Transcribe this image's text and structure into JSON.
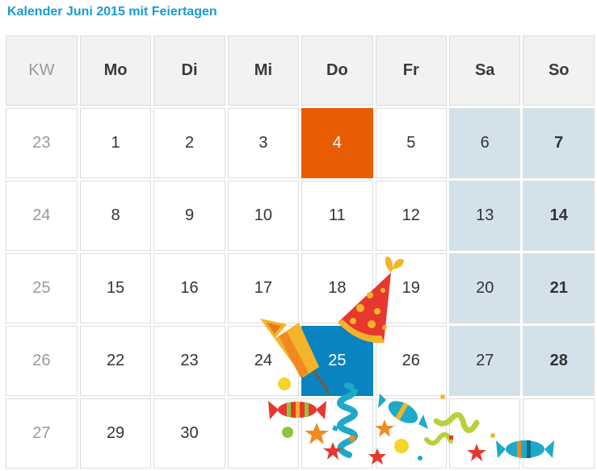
{
  "title": "Kalender Juni 2015 mit Feiertagen",
  "header": {
    "kw": "KW",
    "days": [
      "Mo",
      "Di",
      "Mi",
      "Do",
      "Fr",
      "Sa",
      "So"
    ]
  },
  "weeks": [
    {
      "kw": "23",
      "days": [
        "1",
        "2",
        "3",
        "4",
        "5",
        "6",
        "7"
      ]
    },
    {
      "kw": "24",
      "days": [
        "8",
        "9",
        "10",
        "11",
        "12",
        "13",
        "14"
      ]
    },
    {
      "kw": "25",
      "days": [
        "15",
        "16",
        "17",
        "18",
        "19",
        "20",
        "21"
      ]
    },
    {
      "kw": "26",
      "days": [
        "22",
        "23",
        "24",
        "25",
        "26",
        "27",
        "28"
      ]
    },
    {
      "kw": "27",
      "days": [
        "29",
        "30",
        "",
        "",
        "",
        "",
        ""
      ]
    }
  ],
  "colors": {
    "title": "#1a9ad6",
    "holiday": "#e85d04",
    "today": "#0a84c0",
    "weekend": "#d3e2ea"
  },
  "decoration_icons": [
    "party-hat-icon",
    "firework-rocket-icon",
    "candy-icon",
    "streamer-icon",
    "star-icon",
    "confetti-icon"
  ]
}
